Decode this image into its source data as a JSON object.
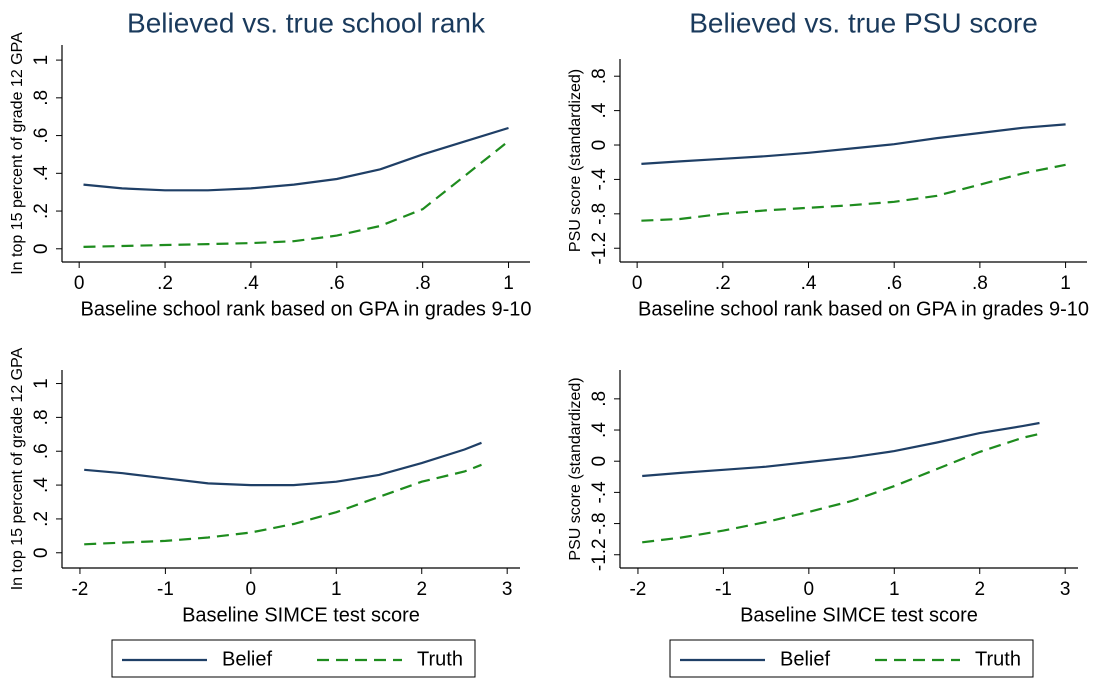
{
  "chart_data": [
    {
      "type": "line",
      "title": "Believed vs. true school rank",
      "x_label": "Baseline school rank based on GPA in grades 9-10",
      "y_label": "In top 15 percent of grade 12 GPA",
      "x": [
        0.01,
        0.1,
        0.2,
        0.3,
        0.4,
        0.5,
        0.6,
        0.7,
        0.8,
        0.9,
        1
      ],
      "series": [
        {
          "color": "#1f3f66",
          "style": "solid",
          "values": [
            0.34,
            0.32,
            0.31,
            0.31,
            0.32,
            0.34,
            0.37,
            0.42,
            0.5,
            0.57,
            0.64
          ]
        },
        {
          "color": "#1e8c1e",
          "style": "dashed",
          "values": [
            0.01,
            0.015,
            0.02,
            0.025,
            0.03,
            0.04,
            0.07,
            0.12,
            0.21,
            0.39,
            0.57
          ]
        }
      ],
      "xlim": [
        -0.04,
        1.05
      ],
      "ylim": [
        -0.07,
        1.08
      ],
      "xticks": [
        0,
        {
          "value": 0.2,
          "label": ".2"
        },
        {
          "value": 0.4,
          "label": ".4"
        },
        {
          "value": 0.6,
          "label": ".6"
        },
        {
          "value": 0.8,
          "label": ".8"
        },
        1
      ],
      "yticks": [
        0,
        {
          "value": 0.2,
          "label": ".2"
        },
        {
          "value": 0.4,
          "label": ".4"
        },
        {
          "value": 0.6,
          "label": ".6"
        },
        {
          "value": 0.8,
          "label": ".8"
        },
        1
      ]
    },
    {
      "type": "line",
      "title": "Believed vs. true PSU score",
      "x_label": "Baseline school rank based on GPA in grades 9-10",
      "y_label": "PSU score (standardized)",
      "x": [
        0.01,
        0.1,
        0.2,
        0.3,
        0.4,
        0.5,
        0.6,
        0.7,
        0.8,
        0.9,
        1
      ],
      "series": [
        {
          "color": "#1f3f66",
          "style": "solid",
          "values": [
            -0.22,
            -0.19,
            -0.16,
            -0.13,
            -0.09,
            -0.04,
            0.01,
            0.08,
            0.14,
            0.2,
            0.24
          ]
        },
        {
          "color": "#1e8c1e",
          "style": "dashed",
          "values": [
            -0.88,
            -0.86,
            -0.8,
            -0.76,
            -0.73,
            -0.7,
            -0.66,
            -0.59,
            -0.46,
            -0.33,
            -0.23
          ]
        }
      ],
      "xlim": [
        -0.04,
        1.05
      ],
      "ylim": [
        -1.36,
        1.0
      ],
      "xticks": [
        0,
        {
          "value": 0.2,
          "label": ".2"
        },
        {
          "value": 0.4,
          "label": ".4"
        },
        {
          "value": 0.6,
          "label": ".6"
        },
        {
          "value": 0.8,
          "label": ".8"
        },
        1
      ],
      "yticks": [
        -1.2,
        {
          "value": -0.8,
          "label": "-.8"
        },
        {
          "value": -0.4,
          "label": "-.4"
        },
        0,
        {
          "value": 0.4,
          "label": ".4"
        },
        {
          "value": 0.8,
          "label": ".8"
        }
      ]
    },
    {
      "type": "line",
      "x_label": "Baseline SIMCE test score",
      "y_label": "In top 15 percent of grade 12 GPA",
      "x": [
        -1.95,
        -1.5,
        -1,
        -0.5,
        0,
        0.5,
        1,
        1.5,
        2,
        2.5,
        2.7
      ],
      "series": [
        {
          "name": "Belief",
          "color": "#1f3f66",
          "style": "solid",
          "values": [
            0.49,
            0.47,
            0.44,
            0.41,
            0.4,
            0.4,
            0.42,
            0.46,
            0.53,
            0.61,
            0.65
          ]
        },
        {
          "name": "Truth",
          "color": "#1e8c1e",
          "style": "dashed",
          "values": [
            0.05,
            0.06,
            0.07,
            0.09,
            0.12,
            0.17,
            0.24,
            0.33,
            0.42,
            0.48,
            0.52
          ]
        }
      ],
      "xlim": [
        -2.21,
        3.15
      ],
      "ylim": [
        -0.09,
        1.08
      ],
      "xticks": [
        -2,
        -1,
        0,
        1,
        2,
        3
      ],
      "yticks": [
        0,
        {
          "value": 0.2,
          "label": ".2"
        },
        {
          "value": 0.4,
          "label": ".4"
        },
        {
          "value": 0.6,
          "label": ".6"
        },
        {
          "value": 0.8,
          "label": ".8"
        },
        1
      ]
    },
    {
      "type": "line",
      "x_label": "Baseline SIMCE test score",
      "y_label": "PSU score (standardized)",
      "x": [
        -1.95,
        -1.5,
        -1,
        -0.5,
        0,
        0.5,
        1,
        1.5,
        2,
        2.5,
        2.7
      ],
      "series": [
        {
          "name": "Belief",
          "color": "#1f3f66",
          "style": "solid",
          "values": [
            -0.19,
            -0.15,
            -0.11,
            -0.07,
            -0.01,
            0.05,
            0.13,
            0.24,
            0.36,
            0.45,
            0.49
          ]
        },
        {
          "name": "Truth",
          "color": "#1e8c1e",
          "style": "dashed",
          "values": [
            -1.04,
            -0.98,
            -0.89,
            -0.78,
            -0.65,
            -0.51,
            -0.32,
            -0.1,
            0.12,
            0.3,
            0.35
          ]
        }
      ],
      "xlim": [
        -2.21,
        3.15
      ],
      "ylim": [
        -1.37,
        1.17
      ],
      "xticks": [
        -2,
        -1,
        0,
        1,
        2,
        3
      ],
      "yticks": [
        -1.2,
        {
          "value": -0.8,
          "label": "-.8"
        },
        {
          "value": -0.4,
          "label": "-.4"
        },
        0,
        {
          "value": 0.4,
          "label": ".4"
        },
        {
          "value": 0.8,
          "label": ".8"
        }
      ]
    }
  ]
}
